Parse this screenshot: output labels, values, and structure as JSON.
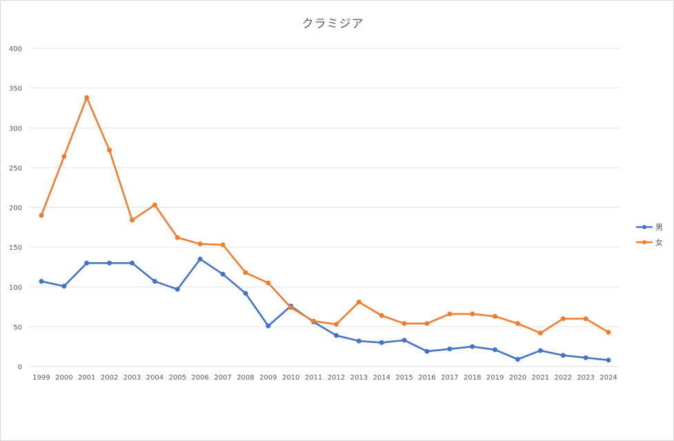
{
  "chart_data": {
    "type": "line",
    "title": "クラミジア",
    "xlabel": "",
    "ylabel": "",
    "ylim": [
      0,
      400
    ],
    "yticks": [
      0,
      50,
      100,
      150,
      200,
      250,
      300,
      350,
      400
    ],
    "grid": true,
    "legend_position": "right",
    "x": [
      "1999",
      "2000",
      "2001",
      "2002",
      "2003",
      "2004",
      "2005",
      "2006",
      "2007",
      "2008",
      "2009",
      "2010",
      "2011",
      "2012",
      "2013",
      "2014",
      "2015",
      "2016",
      "2017",
      "2018",
      "2019",
      "2020",
      "2021",
      "2022",
      "2023",
      "2024"
    ],
    "series": [
      {
        "name": "男",
        "color": "#4472C4",
        "values": [
          107,
          101,
          130,
          130,
          130,
          107,
          97,
          135,
          116,
          92,
          51,
          76,
          56,
          39,
          32,
          30,
          33,
          19,
          22,
          25,
          21,
          9,
          20,
          14,
          11,
          8
        ]
      },
      {
        "name": "女",
        "color": "#ED7D31",
        "values": [
          190,
          264,
          338,
          272,
          184,
          203,
          162,
          154,
          153,
          118,
          105,
          74,
          57,
          53,
          81,
          64,
          54,
          54,
          66,
          66,
          63,
          54,
          42,
          60,
          60,
          43
        ]
      }
    ]
  }
}
